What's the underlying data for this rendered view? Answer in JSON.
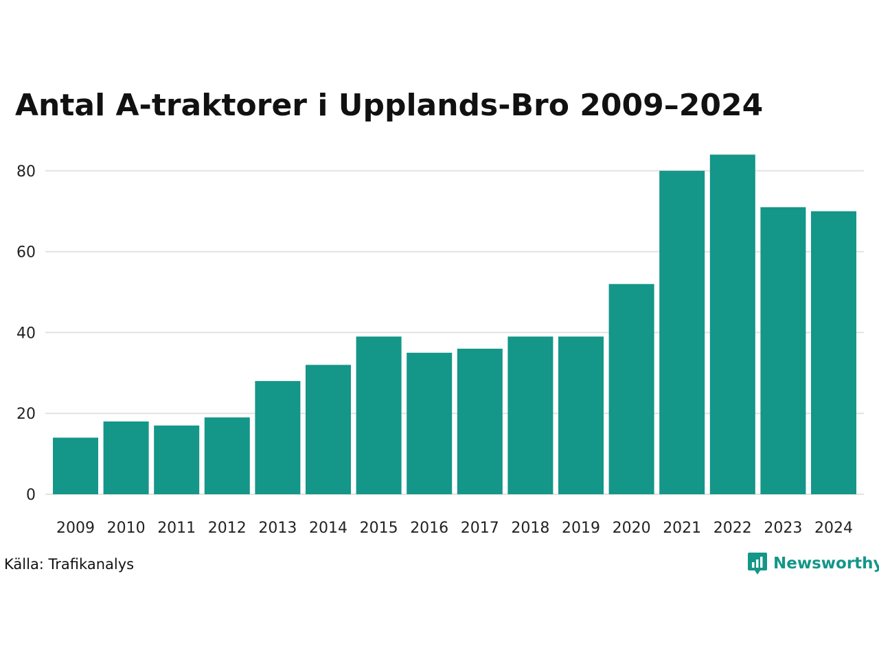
{
  "chart_data": {
    "type": "bar",
    "title": "Antal A-traktorer i Upplands-Bro 2009–2024",
    "categories": [
      "2009",
      "2010",
      "2011",
      "2012",
      "2013",
      "2014",
      "2015",
      "2016",
      "2017",
      "2018",
      "2019",
      "2020",
      "2021",
      "2022",
      "2023",
      "2024"
    ],
    "values": [
      14,
      18,
      17,
      19,
      28,
      32,
      39,
      35,
      36,
      39,
      39,
      52,
      80,
      84,
      71,
      70
    ],
    "ylim": [
      0,
      86
    ],
    "yticks": [
      0,
      20,
      40,
      60,
      80
    ],
    "grid": true,
    "bar_color": "#149688"
  },
  "source": "Källa: Trafikanalys",
  "brand": {
    "name": "Newsworthy",
    "icon": "newsworthy-logo-icon",
    "color": "#149688"
  }
}
